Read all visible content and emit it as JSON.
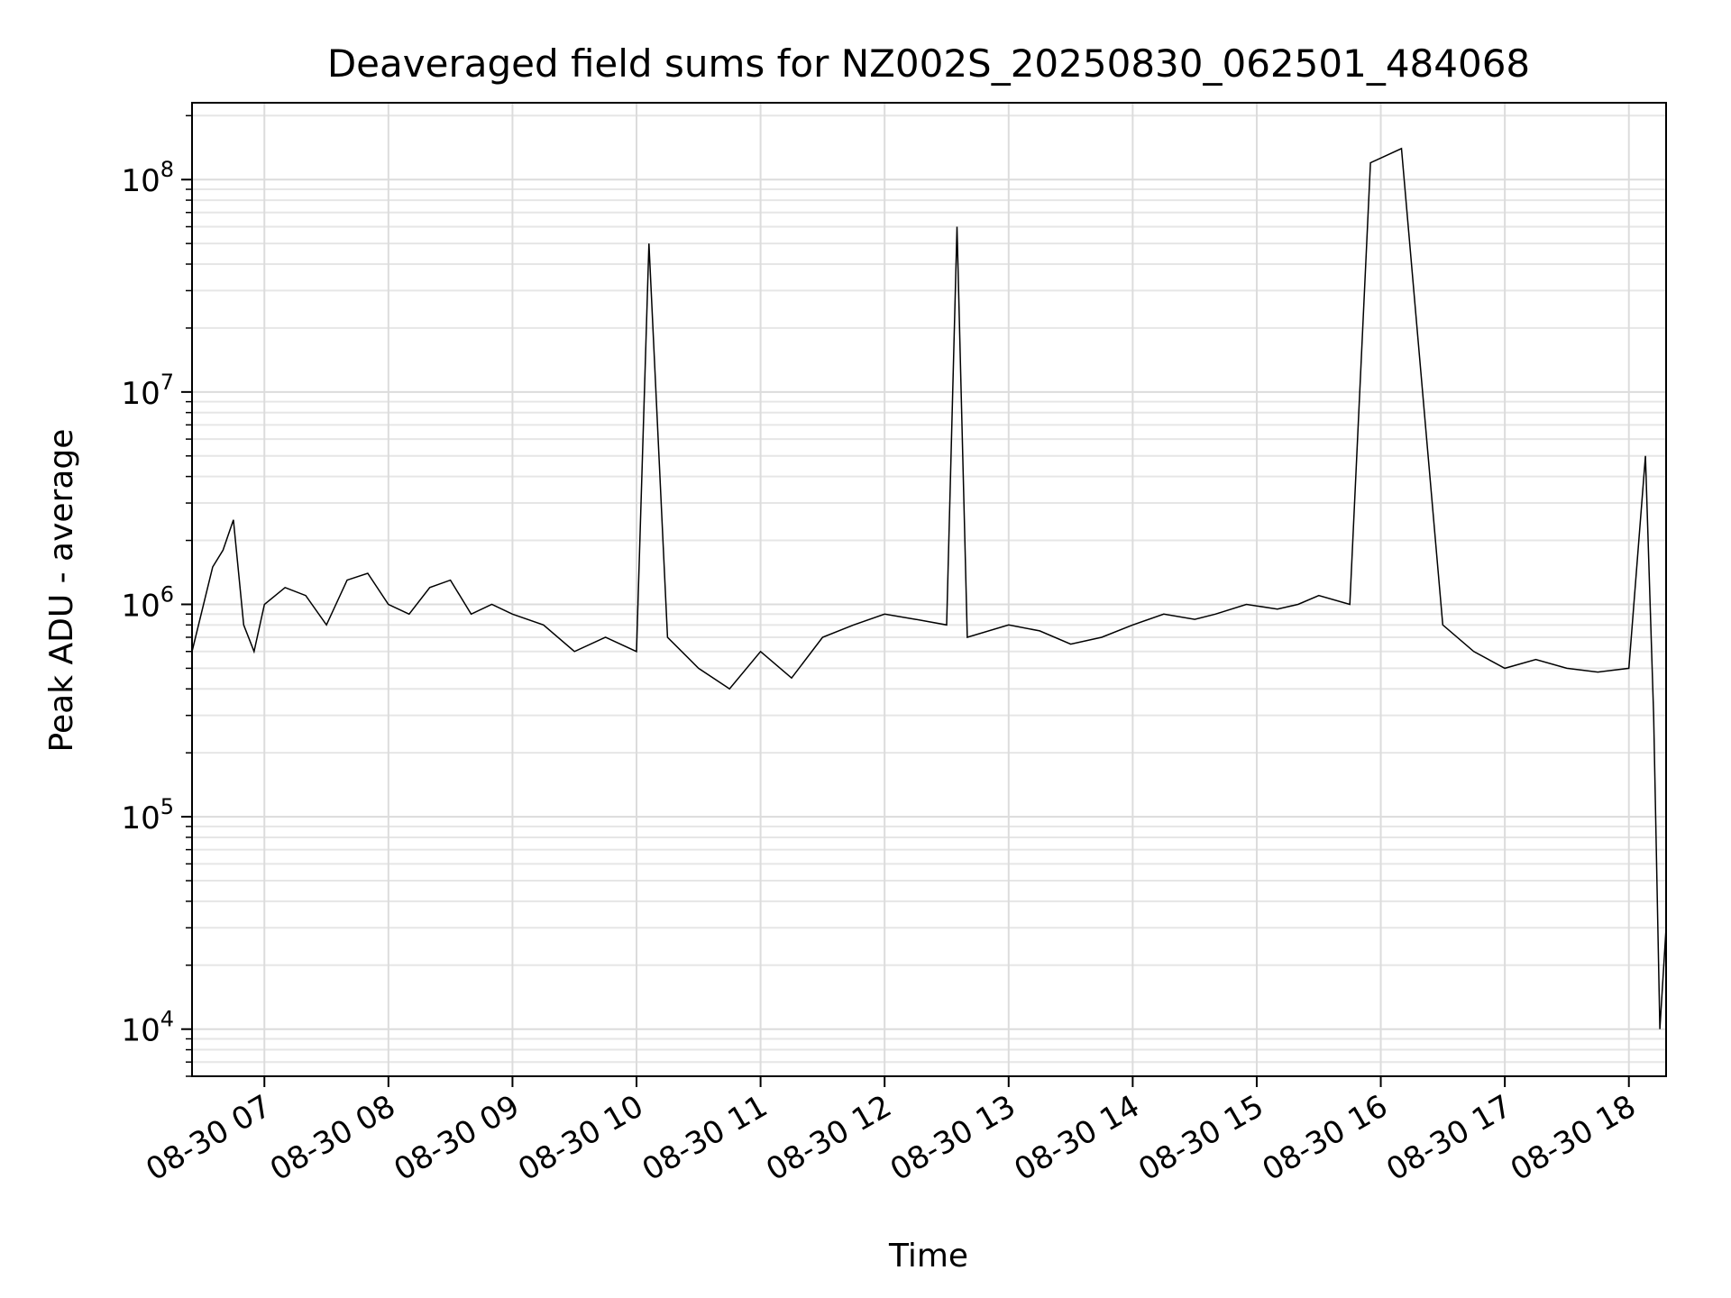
{
  "chart_data": {
    "type": "line",
    "title": "Deaveraged field sums for NZ002S_20250830_062501_484068",
    "xlabel": "Time",
    "ylabel": "Peak ADU - average",
    "yscale": "log",
    "ylim": [
      6000,
      230000000
    ],
    "xlim": [
      "2025-08-30 06:25",
      "2025-08-30 18:18"
    ],
    "grid": true,
    "line_color": "#000000",
    "x_ticks": [
      {
        "value": "2025-08-30 07:00",
        "label": "08-30 07"
      },
      {
        "value": "2025-08-30 08:00",
        "label": "08-30 08"
      },
      {
        "value": "2025-08-30 09:00",
        "label": "08-30 09"
      },
      {
        "value": "2025-08-30 10:00",
        "label": "08-30 10"
      },
      {
        "value": "2025-08-30 11:00",
        "label": "08-30 11"
      },
      {
        "value": "2025-08-30 12:00",
        "label": "08-30 12"
      },
      {
        "value": "2025-08-30 13:00",
        "label": "08-30 13"
      },
      {
        "value": "2025-08-30 14:00",
        "label": "08-30 14"
      },
      {
        "value": "2025-08-30 15:00",
        "label": "08-30 15"
      },
      {
        "value": "2025-08-30 16:00",
        "label": "08-30 16"
      },
      {
        "value": "2025-08-30 17:00",
        "label": "08-30 17"
      },
      {
        "value": "2025-08-30 18:00",
        "label": "08-30 18"
      }
    ],
    "y_ticks": [
      {
        "value": 10000,
        "base": "10",
        "exp": "4"
      },
      {
        "value": 100000,
        "base": "10",
        "exp": "5"
      },
      {
        "value": 1000000,
        "base": "10",
        "exp": "6"
      },
      {
        "value": 10000000,
        "base": "10",
        "exp": "7"
      },
      {
        "value": 100000000,
        "base": "10",
        "exp": "8"
      }
    ],
    "series": [
      {
        "x": [
          "2025-08-30 06:25",
          "2025-08-30 06:35",
          "2025-08-30 06:40",
          "2025-08-30 06:45",
          "2025-08-30 06:50",
          "2025-08-30 06:55",
          "2025-08-30 07:00",
          "2025-08-30 07:10",
          "2025-08-30 07:20",
          "2025-08-30 07:30",
          "2025-08-30 07:40",
          "2025-08-30 07:50",
          "2025-08-30 08:00",
          "2025-08-30 08:10",
          "2025-08-30 08:20",
          "2025-08-30 08:30",
          "2025-08-30 08:40",
          "2025-08-30 08:50",
          "2025-08-30 09:00",
          "2025-08-30 09:15",
          "2025-08-30 09:30",
          "2025-08-30 09:45",
          "2025-08-30 10:00",
          "2025-08-30 10:06",
          "2025-08-30 10:15",
          "2025-08-30 10:30",
          "2025-08-30 10:45",
          "2025-08-30 11:00",
          "2025-08-30 11:15",
          "2025-08-30 11:30",
          "2025-08-30 11:45",
          "2025-08-30 12:00",
          "2025-08-30 12:15",
          "2025-08-30 12:30",
          "2025-08-30 12:35",
          "2025-08-30 12:40",
          "2025-08-30 13:00",
          "2025-08-30 13:15",
          "2025-08-30 13:30",
          "2025-08-30 13:45",
          "2025-08-30 14:00",
          "2025-08-30 14:15",
          "2025-08-30 14:30",
          "2025-08-30 14:40",
          "2025-08-30 14:55",
          "2025-08-30 15:10",
          "2025-08-30 15:20",
          "2025-08-30 15:30",
          "2025-08-30 15:45",
          "2025-08-30 15:55",
          "2025-08-30 16:10",
          "2025-08-30 16:30",
          "2025-08-30 16:45",
          "2025-08-30 17:00",
          "2025-08-30 17:15",
          "2025-08-30 17:30",
          "2025-08-30 17:45",
          "2025-08-30 18:00",
          "2025-08-30 18:08",
          "2025-08-30 18:12",
          "2025-08-30 18:15",
          "2025-08-30 18:18"
        ],
        "y": [
          600000,
          1500000,
          1800000,
          2500000,
          800000,
          600000,
          1000000,
          1200000,
          1100000,
          800000,
          1300000,
          1400000,
          1000000,
          900000,
          1200000,
          1300000,
          900000,
          1000000,
          900000,
          800000,
          600000,
          700000,
          600000,
          50000000,
          700000,
          500000,
          400000,
          600000,
          450000,
          700000,
          800000,
          900000,
          850000,
          800000,
          60000000,
          700000,
          800000,
          750000,
          650000,
          700000,
          800000,
          900000,
          850000,
          900000,
          1000000,
          950000,
          1000000,
          1100000,
          1000000,
          120000000,
          140000000,
          800000,
          600000,
          500000,
          550000,
          500000,
          480000,
          500000,
          5000000,
          300000,
          10000,
          30000
        ]
      }
    ]
  }
}
